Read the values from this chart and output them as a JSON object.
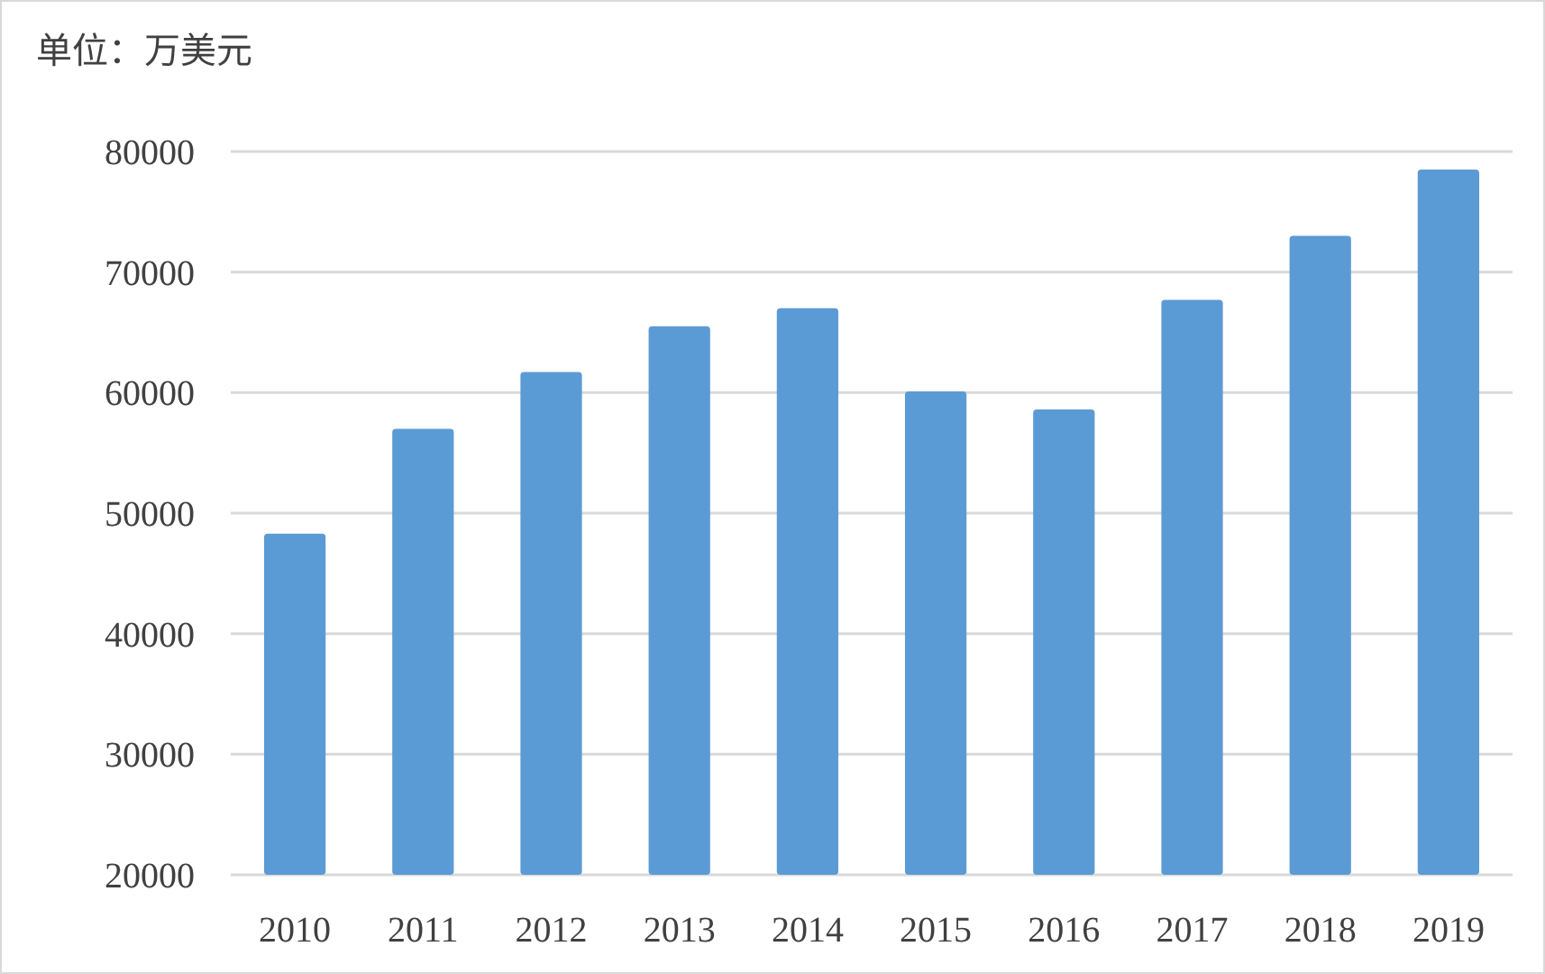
{
  "chart_data": {
    "type": "bar",
    "ylabel": "单位：万美元",
    "categories": [
      "2010",
      "2011",
      "2012",
      "2013",
      "2014",
      "2015",
      "2016",
      "2017",
      "2018",
      "2019"
    ],
    "values": [
      48300,
      57000,
      61700,
      65500,
      67000,
      60100,
      58600,
      67700,
      73000,
      78500
    ],
    "color": "#5b9bd5",
    "ylim": [
      20000,
      80000
    ],
    "yticks": [
      20000,
      30000,
      40000,
      50000,
      60000,
      70000,
      80000
    ],
    "grid": "y"
  }
}
